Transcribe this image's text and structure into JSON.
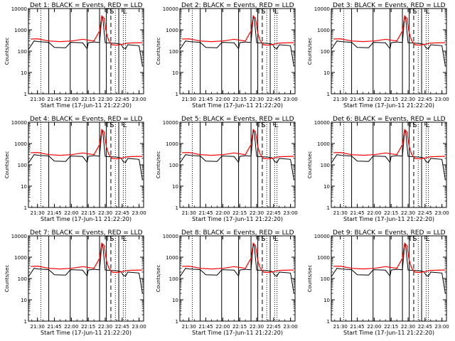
{
  "chart_data": [
    {
      "type": "line",
      "title": "Det  1: BLACK = Events, RED = LLD",
      "xlabel": "Start Time (17-Jun-11 21:22:20)",
      "ylabel": "Counts/sec",
      "yscale": "log",
      "ylim": [
        1,
        10000
      ],
      "yticks": [
        "1",
        "10",
        "100",
        "1000",
        "10000"
      ],
      "xticks": [
        "21:30",
        "21:45",
        "22:00",
        "22:15",
        "22:30",
        "22:45",
        "23:00"
      ],
      "markers": [
        "TS",
        "L"
      ],
      "colors": {
        "events": "#000000",
        "lld": "#ff0000"
      }
    },
    {
      "type": "line",
      "title": "Det  2: BLACK = Events, RED = LLD",
      "xlabel": "Start Time (17-Jun-11 21:22:20)",
      "ylabel": "Counts/sec",
      "yscale": "log",
      "ylim": [
        1,
        10000
      ],
      "yticks": [
        "1",
        "10",
        "100",
        "1000",
        "10000"
      ],
      "xticks": [
        "21:30",
        "21:45",
        "22:00",
        "22:15",
        "22:30",
        "22:45",
        "23:00"
      ],
      "markers": [
        "TS",
        "L"
      ],
      "colors": {
        "events": "#000000",
        "lld": "#ff0000"
      }
    },
    {
      "type": "line",
      "title": "Det  3: BLACK = Events, RED = LLD",
      "xlabel": "Start Time (17-Jun-11 21:22:20)",
      "ylabel": "Counts/sec",
      "yscale": "log",
      "ylim": [
        1,
        10000
      ],
      "yticks": [
        "1",
        "10",
        "100",
        "1000",
        "10000"
      ],
      "xticks": [
        "21:30",
        "21:45",
        "22:00",
        "22:15",
        "22:30",
        "22:45",
        "23:00"
      ],
      "markers": [
        "TS",
        "L"
      ],
      "colors": {
        "events": "#000000",
        "lld": "#ff0000"
      }
    },
    {
      "type": "line",
      "title": "Det  4: BLACK = Events, RED = LLD",
      "xlabel": "Start Time (17-Jun-11 21:22:20)",
      "ylabel": "Counts/sec",
      "yscale": "log",
      "ylim": [
        1,
        10000
      ],
      "yticks": [
        "1",
        "10",
        "100",
        "1000",
        "10000"
      ],
      "xticks": [
        "21:30",
        "21:45",
        "22:00",
        "22:15",
        "22:30",
        "22:45",
        "23:00"
      ],
      "markers": [
        "TS",
        "L"
      ],
      "colors": {
        "events": "#000000",
        "lld": "#ff0000"
      }
    },
    {
      "type": "line",
      "title": "Det  5: BLACK = Events, RED = LLD",
      "xlabel": "Start Time (17-Jun-11 21:22:20)",
      "ylabel": "Counts/sec",
      "yscale": "log",
      "ylim": [
        1,
        10000
      ],
      "yticks": [
        "1",
        "10",
        "100",
        "1000",
        "10000"
      ],
      "xticks": [
        "21:30",
        "21:45",
        "22:00",
        "22:15",
        "22:30",
        "22:45",
        "23:00"
      ],
      "markers": [
        "TS",
        "L"
      ],
      "colors": {
        "events": "#000000",
        "lld": "#ff0000"
      }
    },
    {
      "type": "line",
      "title": "Det  6: BLACK = Events, RED = LLD",
      "xlabel": "Start Time (17-Jun-11 21:22:20)",
      "ylabel": "Counts/sec",
      "yscale": "log",
      "ylim": [
        1,
        10000
      ],
      "yticks": [
        "1",
        "10",
        "100",
        "1000",
        "10000"
      ],
      "xticks": [
        "21:30",
        "21:45",
        "22:00",
        "22:15",
        "22:30",
        "22:45",
        "23:00"
      ],
      "markers": [
        "TS",
        "L"
      ],
      "colors": {
        "events": "#000000",
        "lld": "#ff0000"
      }
    },
    {
      "type": "line",
      "title": "Det  7: BLACK = Events, RED = LLD",
      "xlabel": "Start Time (17-Jun-11 21:22:20)",
      "ylabel": "Counts/sec",
      "yscale": "log",
      "ylim": [
        1,
        10000
      ],
      "yticks": [
        "1",
        "10",
        "100",
        "1000",
        "10000"
      ],
      "xticks": [
        "21:30",
        "21:45",
        "22:00",
        "22:15",
        "22:30",
        "22:45",
        "23:00"
      ],
      "markers": [
        "TS",
        "L"
      ],
      "colors": {
        "events": "#000000",
        "lld": "#ff0000"
      }
    },
    {
      "type": "line",
      "title": "Det  8: BLACK = Events, RED = LLD",
      "xlabel": "Start Time (17-Jun-11 21:22:20)",
      "ylabel": "Counts/sec",
      "yscale": "log",
      "ylim": [
        1,
        10000
      ],
      "yticks": [
        "1",
        "10",
        "100",
        "1000",
        "10000"
      ],
      "xticks": [
        "21:30",
        "21:45",
        "22:00",
        "22:15",
        "22:30",
        "22:45",
        "23:00"
      ],
      "markers": [
        "TS",
        "L"
      ],
      "colors": {
        "events": "#000000",
        "lld": "#ff0000"
      }
    },
    {
      "type": "line",
      "title": "Det  9: BLACK = Events, RED = LLD",
      "xlabel": "Start Time (17-Jun-11 21:22:20)",
      "ylabel": "Counts/sec",
      "yscale": "log",
      "ylim": [
        1,
        10000
      ],
      "yticks": [
        "1",
        "10",
        "100",
        "1000",
        "10000"
      ],
      "xticks": [
        "21:30",
        "21:45",
        "22:00",
        "22:15",
        "22:30",
        "22:45",
        "23:00"
      ],
      "markers": [
        "TS",
        "L"
      ],
      "colors": {
        "events": "#000000",
        "lld": "#ff0000"
      }
    }
  ],
  "shared_series": {
    "events_time": [
      "21:22",
      "21:27",
      "21:31",
      "21:40",
      "21:45",
      "21:55",
      "21:59",
      "22:00",
      "22:10",
      "22:14",
      "22:15",
      "22:20",
      "22:24",
      "22:25",
      "22:27",
      "22:28",
      "22:30",
      "22:35",
      "22:40",
      "22:42",
      "22:44",
      "22:46",
      "22:48",
      "22:50",
      "22:55",
      "23:00",
      "23:03"
    ],
    "events_value": [
      120,
      300,
      280,
      260,
      150,
      145,
      250,
      260,
      245,
      130,
      250,
      270,
      260,
      255,
      4500,
      3000,
      250,
      240,
      230,
      220,
      210,
      140,
      130,
      200,
      190,
      180,
      20
    ],
    "lld_time": [
      "21:24",
      "21:30",
      "21:40",
      "21:50",
      "22:00",
      "22:10",
      "22:20",
      "22:25",
      "22:27",
      "22:29",
      "22:31",
      "22:33",
      "22:36",
      "22:40",
      "22:45",
      "22:50",
      "23:00",
      "23:03"
    ],
    "lld_value": [
      370,
      380,
      300,
      280,
      300,
      360,
      300,
      900,
      4500,
      3500,
      700,
      320,
      200,
      190,
      210,
      240,
      250,
      250
    ]
  }
}
